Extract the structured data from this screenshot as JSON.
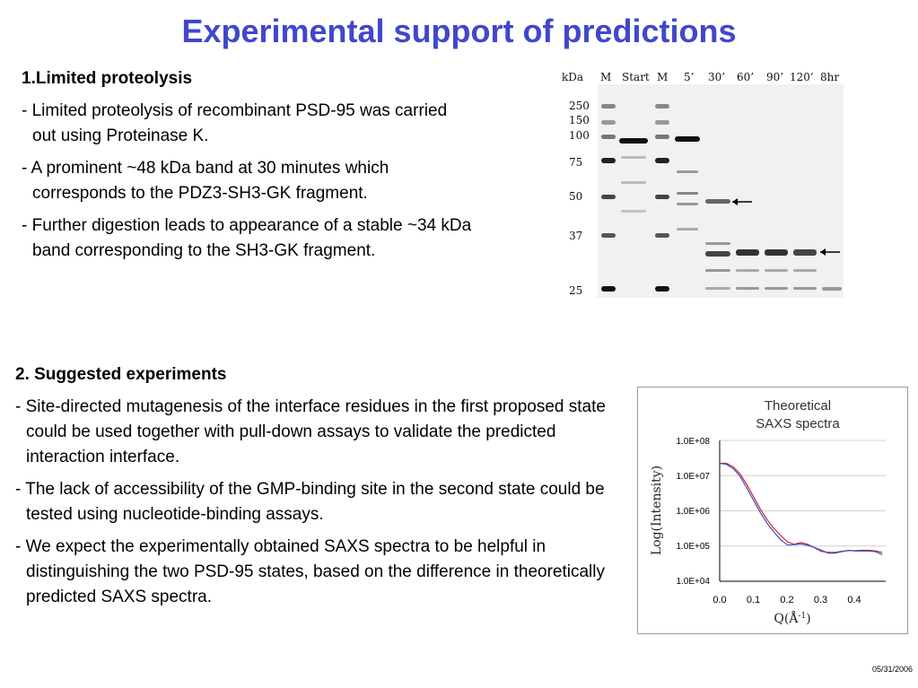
{
  "title": "Experimental support of predictions",
  "section1": {
    "heading": "1.Limited proteolysis",
    "bullets": [
      "- Limited proteolysis of recombinant PSD-95 was carried out using Proteinase K.",
      "- A prominent ~48 kDa band at 30 minutes which corresponds to the PDZ3-SH3-GK fragment.",
      "- Further digestion leads to appearance of a stable ~34 kDa band corresponding to the SH3-GK fragment."
    ]
  },
  "section2": {
    "heading": "2. Suggested experiments",
    "bullets": [
      "- Site-directed mutagenesis of the interface  residues in the first proposed state could be used together with pull-down assays to validate the predicted interaction interface.",
      "- The lack of accessibility of the GMP-binding site in the second state could be tested using nucleotide-binding assays.",
      "- We expect the experimentally obtained SAXS spectra to be helpful in distinguishing the two PSD-95 states, based on the difference in theoretically predicted SAXS spectra."
    ]
  },
  "gel": {
    "unit_label": "kDa",
    "lanes": [
      "M",
      "Start",
      "M",
      "5’",
      "30’",
      "60’",
      "90’",
      "120’",
      "8hr"
    ],
    "markers": [
      "250",
      "150",
      "100",
      "75",
      "50",
      "37",
      "25"
    ]
  },
  "saxs": {
    "title_line1": "Theoretical",
    "title_line2": "SAXS spectra",
    "ylabel": "Log(Intensity)",
    "xlabel": "Q(Å",
    "xlabel_sup": "-1",
    "xlabel_close": ")",
    "yticks": [
      "1.0E+08",
      "1.0E+07",
      "1.0E+06",
      "1.0E+05",
      "1.0E+04"
    ],
    "xticks": [
      "0.0",
      "0.1",
      "0.2",
      "0.3",
      "0.4"
    ]
  },
  "chart_data": {
    "type": "line",
    "title": "Theoretical SAXS spectra",
    "xlabel": "Q(Å-1)",
    "ylabel": "Log(Intensity)",
    "xlim": [
      0,
      0.49
    ],
    "ylim_log10": [
      4,
      8
    ],
    "yscale": "log",
    "grid": true,
    "colors": [
      "#e02020",
      "#3050d0"
    ],
    "series": [
      {
        "x": [
          0.0,
          0.02,
          0.04,
          0.06,
          0.08,
          0.1,
          0.12,
          0.14,
          0.16,
          0.18,
          0.2,
          0.22,
          0.24,
          0.26,
          0.28,
          0.3,
          0.32,
          0.34,
          0.36,
          0.38,
          0.4,
          0.42,
          0.44,
          0.46,
          0.48
        ],
        "y_log10": [
          7.35,
          7.35,
          7.25,
          7.05,
          6.75,
          6.4,
          6.05,
          5.75,
          5.5,
          5.3,
          5.12,
          5.05,
          5.1,
          5.05,
          4.95,
          4.85,
          4.82,
          4.82,
          4.85,
          4.87,
          4.87,
          4.88,
          4.88,
          4.86,
          4.82
        ]
      },
      {
        "x": [
          0.0,
          0.02,
          0.04,
          0.06,
          0.08,
          0.1,
          0.12,
          0.14,
          0.16,
          0.18,
          0.2,
          0.22,
          0.24,
          0.26,
          0.28,
          0.3,
          0.32,
          0.34,
          0.36,
          0.38,
          0.4,
          0.42,
          0.44,
          0.46,
          0.48
        ],
        "y_log10": [
          7.35,
          7.32,
          7.2,
          6.98,
          6.65,
          6.3,
          5.95,
          5.65,
          5.4,
          5.18,
          5.03,
          5.04,
          5.06,
          5.02,
          4.96,
          4.88,
          4.8,
          4.8,
          4.84,
          4.88,
          4.86,
          4.86,
          4.86,
          4.84,
          4.76
        ]
      }
    ]
  },
  "footer": {
    "date": "05/31/2006"
  }
}
